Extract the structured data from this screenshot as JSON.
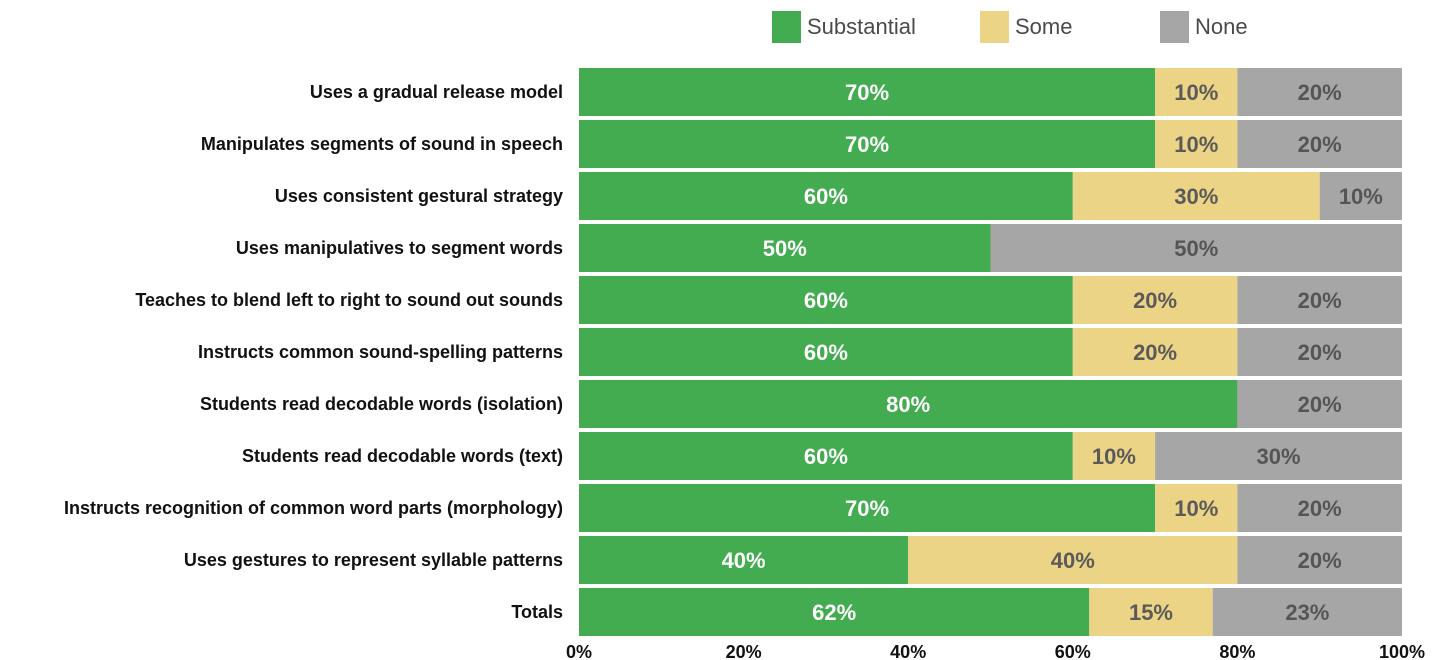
{
  "chart_data": {
    "type": "bar",
    "orientation": "horizontal",
    "stacked": true,
    "value_format": "percent",
    "categories": [
      "Uses a gradual release model",
      "Manipulates segments of sound in speech",
      "Uses consistent gestural strategy",
      "Uses manipulatives to segment words",
      "Teaches to blend left to right to sound out sounds",
      "Instructs common sound-spelling patterns",
      "Students read decodable words (isolation)",
      "Students read decodable words (text)",
      "Instructs recognition of common word parts (morphology)",
      "Uses gestures to represent syllable patterns",
      "Totals"
    ],
    "series": [
      {
        "name": "Substantial",
        "color": "#43ac50",
        "label_color": "#ffffff",
        "values": [
          70,
          70,
          60,
          50,
          60,
          60,
          80,
          60,
          70,
          40,
          62
        ]
      },
      {
        "name": "Some",
        "color": "#ecd486",
        "label_color": "#5a5a5a",
        "values": [
          10,
          10,
          30,
          0,
          20,
          20,
          0,
          10,
          10,
          40,
          15
        ]
      },
      {
        "name": "None",
        "color": "#a6a6a6",
        "label_color": "#555555",
        "values": [
          20,
          20,
          10,
          50,
          20,
          20,
          20,
          30,
          20,
          20,
          23
        ]
      }
    ],
    "x_ticks": [
      "0%",
      "20%",
      "40%",
      "60%",
      "80%",
      "100%"
    ],
    "xlim": [
      0,
      100
    ],
    "grid": false,
    "legend_position": "top-right",
    "title": "",
    "xlabel": "",
    "ylabel": ""
  }
}
